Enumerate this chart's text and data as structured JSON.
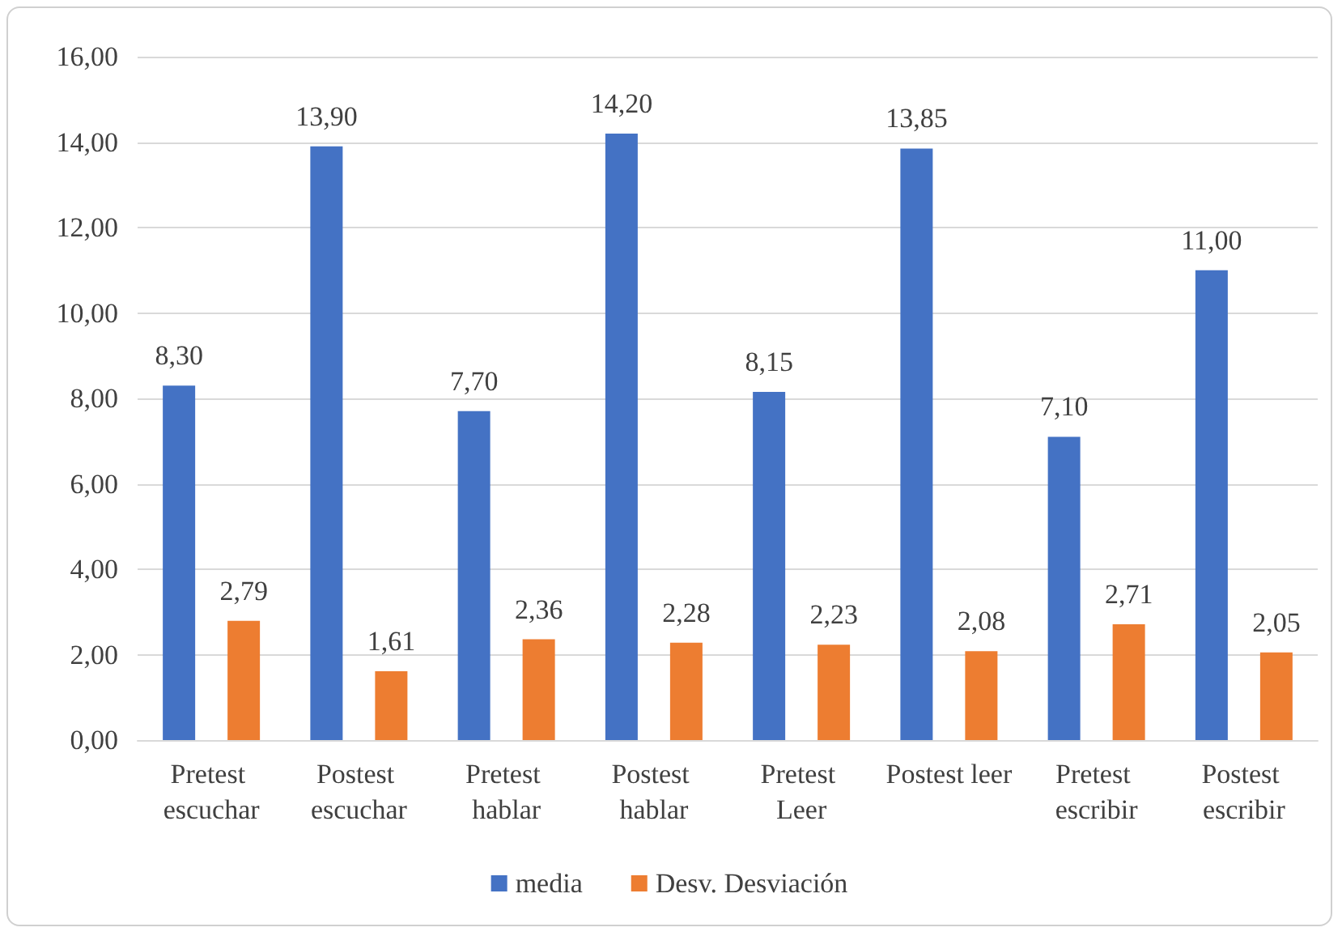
{
  "chart_data": {
    "type": "bar",
    "categories": [
      "Pretest escuchar",
      "Postest escuchar",
      "Pretest hablar",
      "Postest hablar",
      "Pretest Leer",
      "Postest leer",
      "Pretest escribir",
      "Postest escribir"
    ],
    "series": [
      {
        "name": "media",
        "color": "#4472c4",
        "values": [
          8.3,
          13.9,
          7.7,
          14.2,
          8.15,
          13.85,
          7.1,
          11.0
        ],
        "value_labels": [
          "8,30",
          "13,90",
          "7,70",
          "14,20",
          "8,15",
          "13,85",
          "7,10",
          "11,00"
        ]
      },
      {
        "name": "Desv. Desviación",
        "color": "#ed7d31",
        "values": [
          2.79,
          1.61,
          2.36,
          2.28,
          2.23,
          2.08,
          2.71,
          2.05
        ],
        "value_labels": [
          "2,79",
          "1,61",
          "2,36",
          "2,28",
          "2,23",
          "2,08",
          "2,71",
          "2,05"
        ]
      }
    ],
    "ylim": [
      0,
      16
    ],
    "yticks": [
      {
        "value": 0,
        "label": "0,00"
      },
      {
        "value": 2,
        "label": "2,00"
      },
      {
        "value": 4,
        "label": "4,00"
      },
      {
        "value": 6,
        "label": "6,00"
      },
      {
        "value": 8,
        "label": "8,00"
      },
      {
        "value": 10,
        "label": "10,00"
      },
      {
        "value": 12,
        "label": "12,00"
      },
      {
        "value": 14,
        "label": "14,00"
      },
      {
        "value": 16,
        "label": "16,00"
      }
    ],
    "grid": "y",
    "legend": "bottom"
  }
}
